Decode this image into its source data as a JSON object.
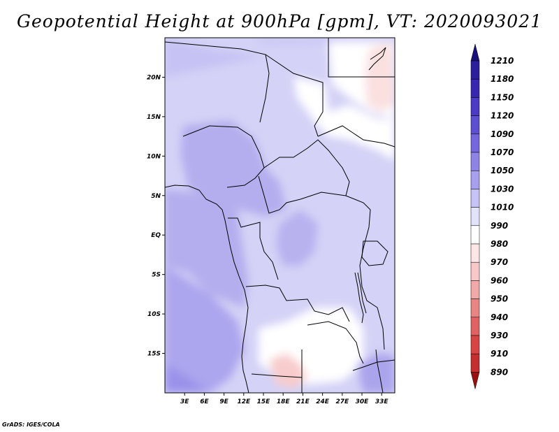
{
  "title": "Geopotential Height at 900hPa [gpm], VT: 2020093021",
  "footer": "GrADS: IGES/COLA",
  "map": {
    "lat_labels": [
      "20N",
      "15N",
      "10N",
      "5N",
      "EQ",
      "5S",
      "10S",
      "15S"
    ],
    "lat_values": [
      20,
      15,
      10,
      5,
      0,
      -5,
      -10,
      -15
    ],
    "lon_labels": [
      "3E",
      "6E",
      "9E",
      "12E",
      "15E",
      "18E",
      "21E",
      "24E",
      "27E",
      "30E",
      "33E"
    ],
    "lon_values": [
      3,
      6,
      9,
      12,
      15,
      18,
      21,
      24,
      27,
      30,
      33
    ],
    "lon_range": [
      0,
      35
    ],
    "lat_range": [
      -20,
      25
    ]
  },
  "colorbar": {
    "labels": [
      "1210",
      "1180",
      "1150",
      "1120",
      "1090",
      "1070",
      "1050",
      "1030",
      "1010",
      "990",
      "980",
      "970",
      "960",
      "950",
      "940",
      "930",
      "910",
      "890"
    ],
    "colors": [
      "#2a1e9a",
      "#3826b0",
      "#4a3ac4",
      "#5c50d0",
      "#7466dc",
      "#8e84e6",
      "#a8a0ee",
      "#c6c2f6",
      "#e2e2fa",
      "#ffffff",
      "#fde6e6",
      "#f8c8c8",
      "#f0a8a8",
      "#e88484",
      "#e06262",
      "#d84444",
      "#c42e2e",
      "#a81e1e"
    ],
    "top_arrow_color": "#1a107a",
    "bottom_arrow_color": "#9a1010"
  }
}
